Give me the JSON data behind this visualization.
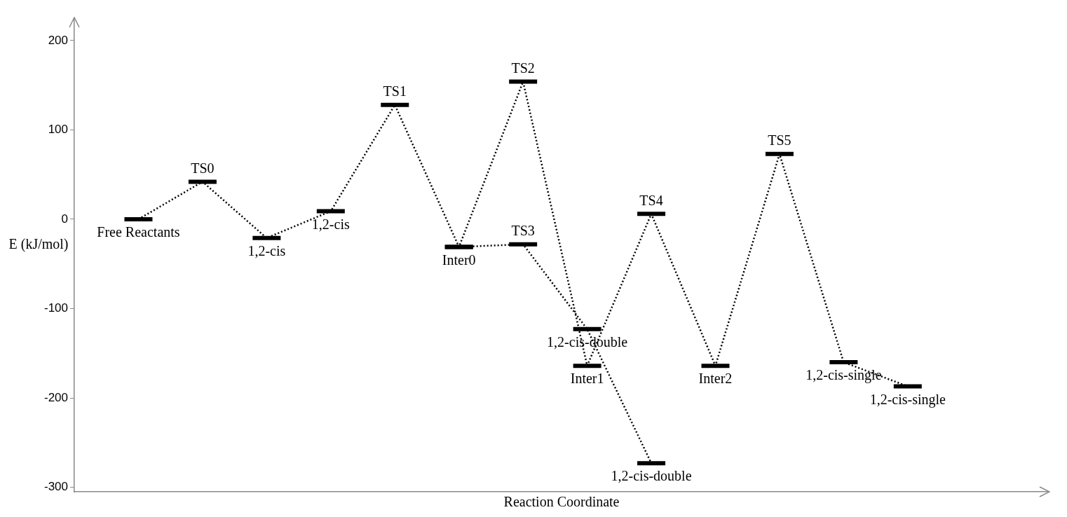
{
  "chart_data": {
    "type": "line",
    "xlabel": "Reaction Coordinate",
    "ylabel": "E (kJ/mol)",
    "categories": [
      null,
      null,
      null,
      null,
      null,
      null,
      null,
      null,
      null,
      null,
      null,
      null,
      null
    ],
    "ylim": [
      -305,
      225
    ],
    "yticks": [
      -300,
      -200,
      -100,
      0,
      100,
      200
    ],
    "tick_labels": "y",
    "grid": false,
    "legend": false,
    "line_style": "dotted",
    "series": [
      {
        "color": "#000000",
        "values": [
          0,
          42,
          -21,
          9,
          128,
          -31,
          154,
          -164,
          6,
          -164,
          73,
          -160,
          -187
        ]
      },
      {
        "color": "#000000",
        "values": [
          null,
          null,
          null,
          null,
          null,
          -31,
          -28,
          -123,
          -273,
          null,
          null,
          null,
          null
        ]
      }
    ],
    "annotations": [
      {
        "text": "Free Reactants",
        "y": 0
      },
      {
        "text": "TS0",
        "y": 42
      },
      {
        "text": "1,2-cis",
        "y": -21
      },
      {
        "text": "1,2-cis",
        "y": 9
      },
      {
        "text": "TS1",
        "y": 128
      },
      {
        "text": "Inter0",
        "y": -31
      },
      {
        "text": "TS2",
        "y": 154
      },
      {
        "text": "TS3",
        "y": -28
      },
      {
        "text": "1,2-cis-double",
        "y": -123
      },
      {
        "text": "Inter1",
        "y": -164
      },
      {
        "text": "TS4",
        "y": 6
      },
      {
        "text": "1,2-cis-double",
        "y": -273
      },
      {
        "text": "Inter2",
        "y": -164
      },
      {
        "text": "TS5",
        "y": 73
      },
      {
        "text": "1,2-cis-single",
        "y": -160
      },
      {
        "text": "1,2-cis-single",
        "y": -187
      }
    ]
  }
}
